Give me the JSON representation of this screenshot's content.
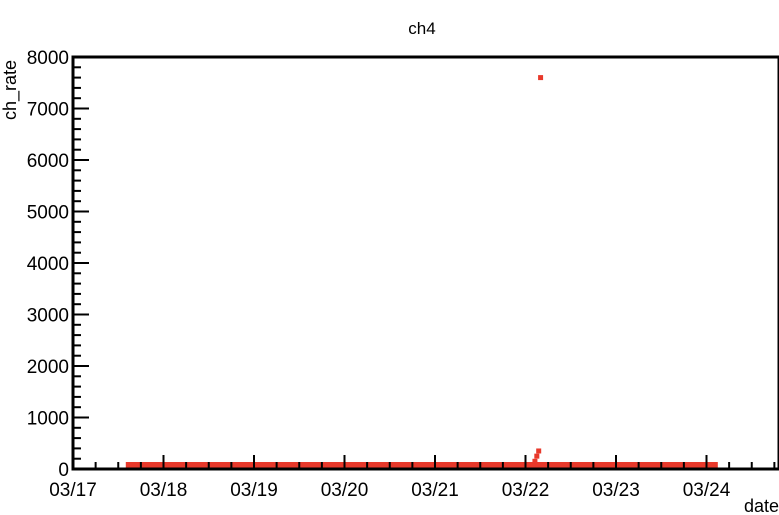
{
  "chart_data": {
    "type": "scatter",
    "title": "ch4",
    "xlabel": "date",
    "ylabel": "ch_rate",
    "x_range": [
      "03/17",
      "03/24"
    ],
    "x_tick_labels": [
      "03/17",
      "03/18",
      "03/19",
      "03/20",
      "03/21",
      "03/22",
      "03/23",
      "03/24"
    ],
    "ylim": [
      0,
      8000
    ],
    "y_tick_labels": [
      "0",
      "1000",
      "2000",
      "3000",
      "4000",
      "5000",
      "6000",
      "7000",
      "8000"
    ],
    "grid": false,
    "legend": "none",
    "marker_color": "#e8392b",
    "series": [
      {
        "baseline": {
          "value": 0,
          "x_start": "03/17 14:00",
          "x_end": "03/24 03:00"
        },
        "points": [
          {
            "x": "03/22 02:00",
            "y": 60
          },
          {
            "x": "03/22 02:30",
            "y": 150
          },
          {
            "x": "03/22 03:00",
            "y": 250
          },
          {
            "x": "03/22 03:30",
            "y": 350
          },
          {
            "x": "03/22 04:00",
            "y": 7600
          }
        ]
      }
    ]
  }
}
